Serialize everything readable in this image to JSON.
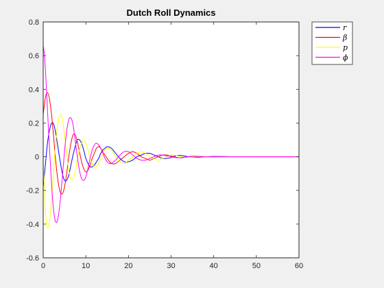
{
  "chart_data": {
    "type": "line",
    "title": "Dutch Roll Dynamics",
    "xlabel": "",
    "ylabel": "",
    "xlim": [
      0,
      60
    ],
    "ylim": [
      -0.6,
      0.8
    ],
    "xticks": [
      "0",
      "10",
      "20",
      "30",
      "40",
      "50",
      "60"
    ],
    "yticks": [
      "-0.6",
      "-0.4",
      "-0.2",
      "0",
      "0.2",
      "0.4",
      "0.6",
      "0.8"
    ],
    "grid": false,
    "legend_position": "outside-top-right",
    "series": [
      {
        "name": "r",
        "color": "#0000ff",
        "x": [
          0,
          0.5,
          1,
          1.5,
          2,
          2.5,
          3,
          3.5,
          4,
          4.5,
          5,
          5.5,
          6,
          6.5,
          7,
          7.5,
          8,
          8.5,
          9,
          9.5,
          10,
          10.5,
          11,
          11.5,
          12,
          12.5,
          13,
          13.5,
          14,
          14.5,
          15,
          16,
          17,
          18,
          19,
          20,
          21,
          22,
          23,
          24,
          25,
          26,
          27,
          28,
          29,
          30,
          31,
          32,
          33,
          34,
          35,
          36,
          38,
          40,
          45,
          50,
          55,
          60
        ],
        "y": [
          -0.18,
          -0.05,
          0.08,
          0.16,
          0.2,
          0.19,
          0.13,
          0.05,
          -0.03,
          -0.1,
          -0.14,
          -0.14,
          -0.11,
          -0.05,
          0.01,
          0.06,
          0.1,
          0.1,
          0.08,
          0.04,
          -0.01,
          -0.04,
          -0.06,
          -0.06,
          -0.05,
          -0.03,
          -0.01,
          0.02,
          0.04,
          0.05,
          0.06,
          0.05,
          0.02,
          -0.01,
          -0.03,
          -0.03,
          -0.02,
          0.0,
          0.01,
          0.02,
          0.02,
          0.01,
          0.0,
          -0.01,
          -0.01,
          -0.005,
          0.005,
          0.008,
          0.005,
          0.0,
          -0.003,
          -0.003,
          0.0,
          0.002,
          0.0,
          0.0,
          0.0,
          0.0
        ]
      },
      {
        "name": "β",
        "color": "#ff0000",
        "x": [
          0,
          0.5,
          1,
          1.5,
          2,
          2.5,
          3,
          3.5,
          4,
          4.5,
          5,
          5.5,
          6,
          6.5,
          7,
          7.5,
          8,
          8.5,
          9,
          9.5,
          10,
          10.5,
          11,
          11.5,
          12,
          12.5,
          13,
          13.5,
          14,
          15,
          16,
          17,
          18,
          19,
          20,
          21,
          22,
          23,
          24,
          25,
          26,
          27,
          28,
          29,
          30,
          31,
          32,
          33,
          34,
          35,
          36,
          38,
          40,
          45,
          50,
          55,
          60
        ],
        "y": [
          0.25,
          0.35,
          0.38,
          0.34,
          0.24,
          0.1,
          -0.04,
          -0.15,
          -0.21,
          -0.22,
          -0.18,
          -0.1,
          0.0,
          0.08,
          0.13,
          0.13,
          0.09,
          0.03,
          -0.03,
          -0.07,
          -0.09,
          -0.08,
          -0.05,
          -0.01,
          0.02,
          0.05,
          0.06,
          0.05,
          0.03,
          -0.01,
          -0.04,
          -0.04,
          -0.02,
          0.0,
          0.02,
          0.03,
          0.02,
          0.0,
          -0.01,
          -0.02,
          -0.01,
          0.0,
          0.01,
          0.01,
          0.005,
          -0.002,
          -0.006,
          -0.005,
          0.0,
          0.003,
          0.003,
          0.0,
          -0.001,
          0.0,
          0.0,
          0.0,
          0.0
        ]
      },
      {
        "name": "p",
        "color": "#ffff00",
        "x": [
          0,
          0.3,
          0.6,
          1,
          1.5,
          2,
          2.5,
          3,
          3.5,
          4,
          4.5,
          5,
          5.5,
          6,
          6.5,
          7,
          7.5,
          8,
          8.5,
          9,
          9.5,
          10,
          10.5,
          11,
          11.5,
          12,
          12.5,
          13,
          13.5,
          14,
          14.5,
          15,
          16,
          17,
          18,
          19,
          20,
          21,
          22,
          23,
          24,
          25,
          26,
          27,
          28,
          29,
          30,
          31,
          32,
          33,
          34,
          35,
          36,
          38,
          40,
          45,
          50,
          55,
          60
        ],
        "y": [
          0.0,
          -0.2,
          -0.35,
          -0.42,
          -0.38,
          -0.24,
          -0.06,
          0.1,
          0.21,
          0.25,
          0.22,
          0.13,
          0.02,
          -0.08,
          -0.13,
          -0.13,
          -0.09,
          -0.02,
          0.04,
          0.08,
          0.1,
          0.08,
          0.04,
          -0.01,
          -0.04,
          -0.06,
          -0.06,
          -0.04,
          -0.01,
          0.02,
          0.04,
          0.05,
          0.04,
          0.0,
          -0.03,
          -0.04,
          -0.02,
          0.0,
          0.02,
          0.03,
          0.02,
          0.0,
          -0.01,
          -0.02,
          -0.01,
          0.0,
          0.01,
          0.008,
          0.003,
          -0.003,
          -0.005,
          -0.002,
          0.0,
          0.002,
          0.0,
          0.0,
          0.0,
          0.0,
          0.0
        ]
      },
      {
        "name": "ϕ",
        "color": "#ff00ff",
        "x": [
          0,
          0.3,
          0.6,
          1,
          1.5,
          2,
          2.5,
          3,
          3.5,
          4,
          4.5,
          5,
          5.5,
          6,
          6.5,
          7,
          7.5,
          8,
          8.5,
          9,
          9.5,
          10,
          10.5,
          11,
          11.5,
          12,
          12.5,
          13,
          13.5,
          14,
          14.5,
          15,
          15.5,
          16,
          16.5,
          17,
          18,
          19,
          20,
          21,
          22,
          23,
          24,
          25,
          26,
          27,
          28,
          29,
          30,
          31,
          32,
          33,
          34,
          35,
          36,
          38,
          40,
          45,
          50,
          55,
          60
        ],
        "y": [
          0.66,
          0.6,
          0.48,
          0.28,
          0.04,
          -0.18,
          -0.33,
          -0.39,
          -0.36,
          -0.26,
          -0.12,
          0.03,
          0.15,
          0.22,
          0.23,
          0.19,
          0.1,
          0.0,
          -0.08,
          -0.13,
          -0.14,
          -0.12,
          -0.07,
          -0.01,
          0.04,
          0.07,
          0.08,
          0.07,
          0.05,
          0.02,
          -0.01,
          -0.03,
          -0.04,
          -0.04,
          -0.03,
          -0.02,
          0.01,
          0.03,
          0.03,
          0.01,
          -0.01,
          -0.02,
          -0.02,
          -0.01,
          0.0,
          0.01,
          0.01,
          0.005,
          0.0,
          -0.005,
          -0.006,
          -0.003,
          0.0,
          0.002,
          0.002,
          0.0,
          0.0,
          0.0,
          0.0,
          0.0,
          0.0
        ]
      }
    ]
  }
}
